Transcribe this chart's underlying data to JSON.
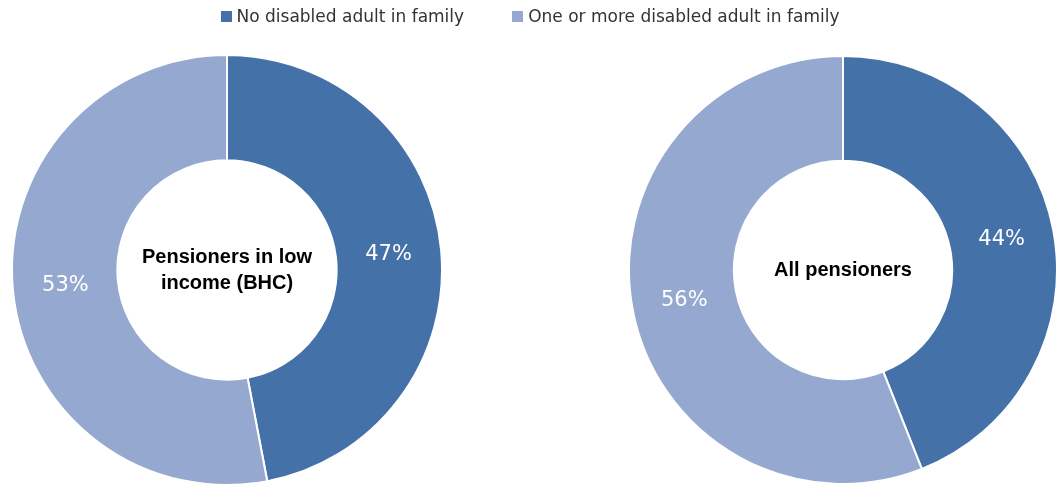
{
  "chart_data": [
    {
      "type": "donut",
      "title": "Pensioners in low income (BHC)",
      "categories": [
        "No disabled adult in family",
        "One or more disabled adult in family"
      ],
      "values": [
        47,
        53
      ],
      "value_labels": [
        "47%",
        "53%"
      ],
      "colors": [
        "#4472a8",
        "#95a9d0"
      ],
      "legend": "top"
    },
    {
      "type": "donut",
      "title": "All pensioners",
      "categories": [
        null,
        null
      ],
      "values": [
        44,
        56
      ],
      "value_labels": [
        "44%",
        "56%"
      ],
      "colors": [
        "#4472a8",
        "#95a9d0"
      ]
    }
  ]
}
